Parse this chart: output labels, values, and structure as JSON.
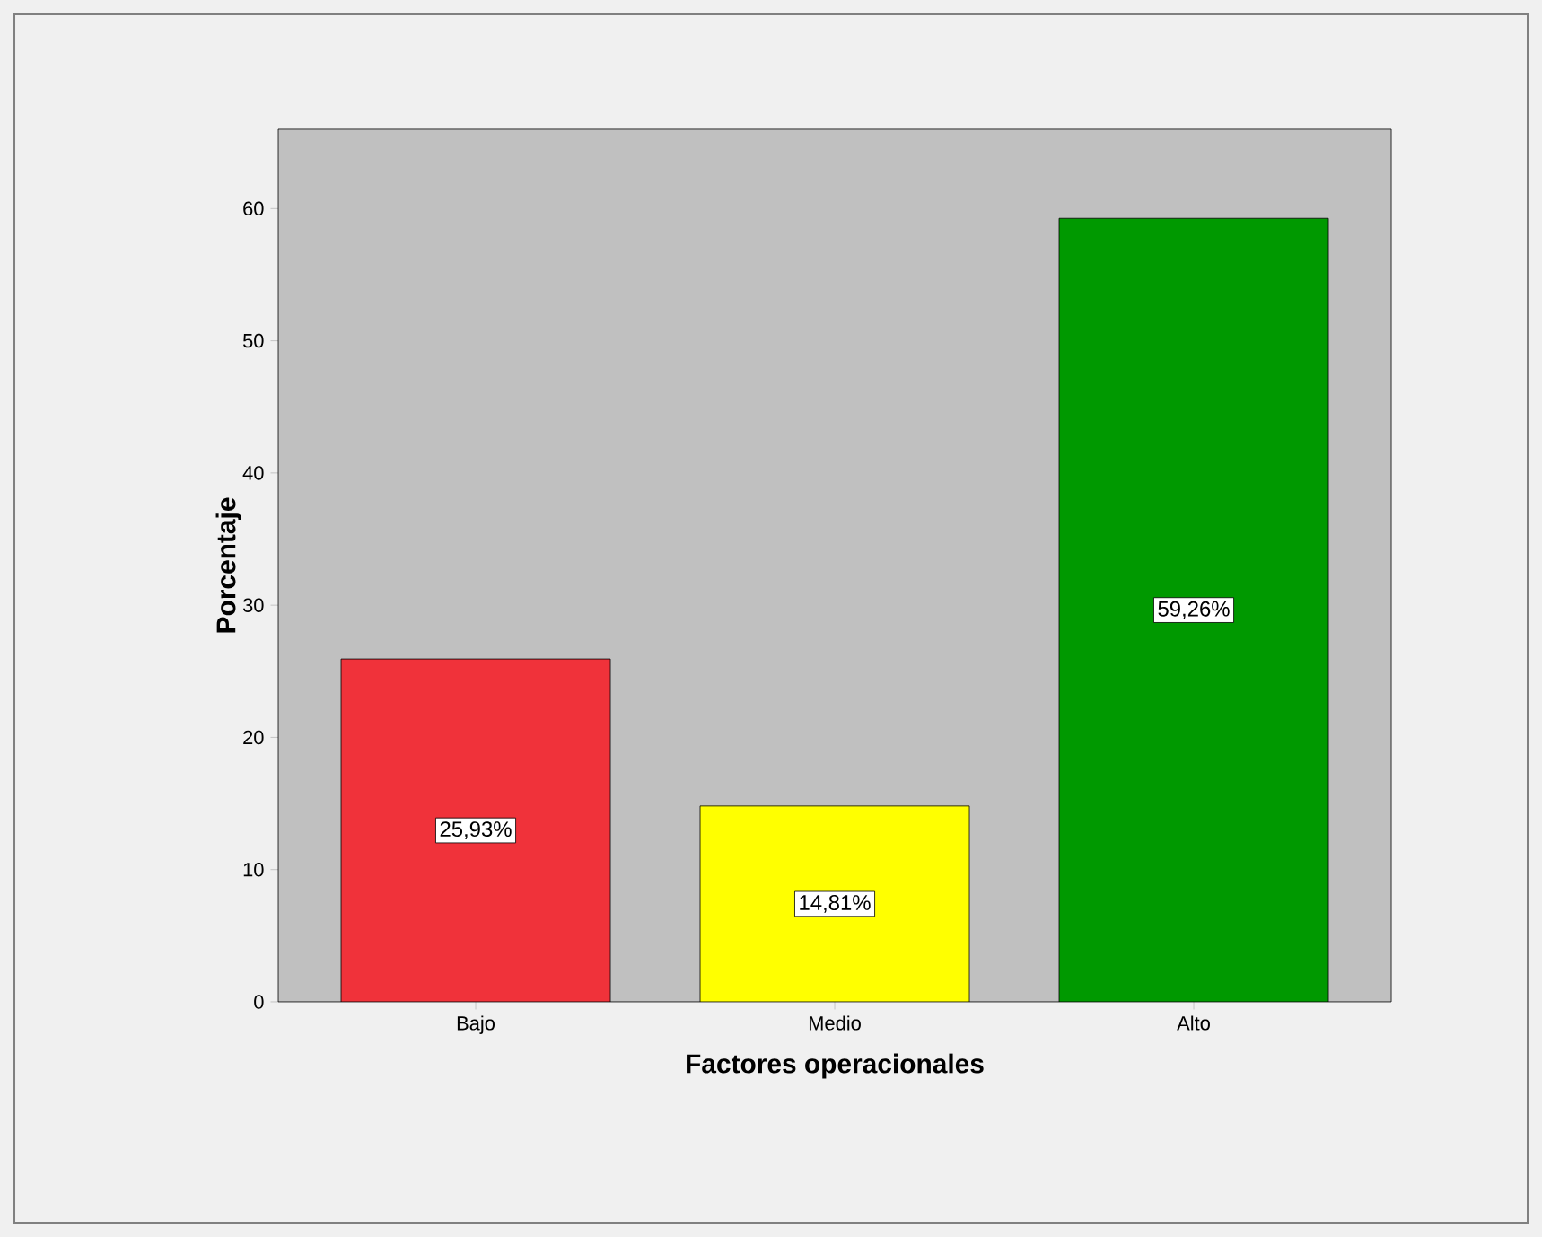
{
  "chart_data": {
    "type": "bar",
    "xlabel": "Factores operacionales",
    "ylabel": "Porcentaje",
    "categories": [
      "Bajo",
      "Medio",
      "Alto"
    ],
    "values": [
      25.93,
      14.81,
      59.26
    ],
    "colors": [
      "#f0323a",
      "#ffff00",
      "#009900"
    ],
    "value_labels": [
      "25,93%",
      "14,81%",
      "59,26%"
    ],
    "ylim": [
      0,
      66
    ],
    "yticks": [
      0,
      10,
      20,
      30,
      40,
      50,
      60
    ],
    "grid": false
  }
}
